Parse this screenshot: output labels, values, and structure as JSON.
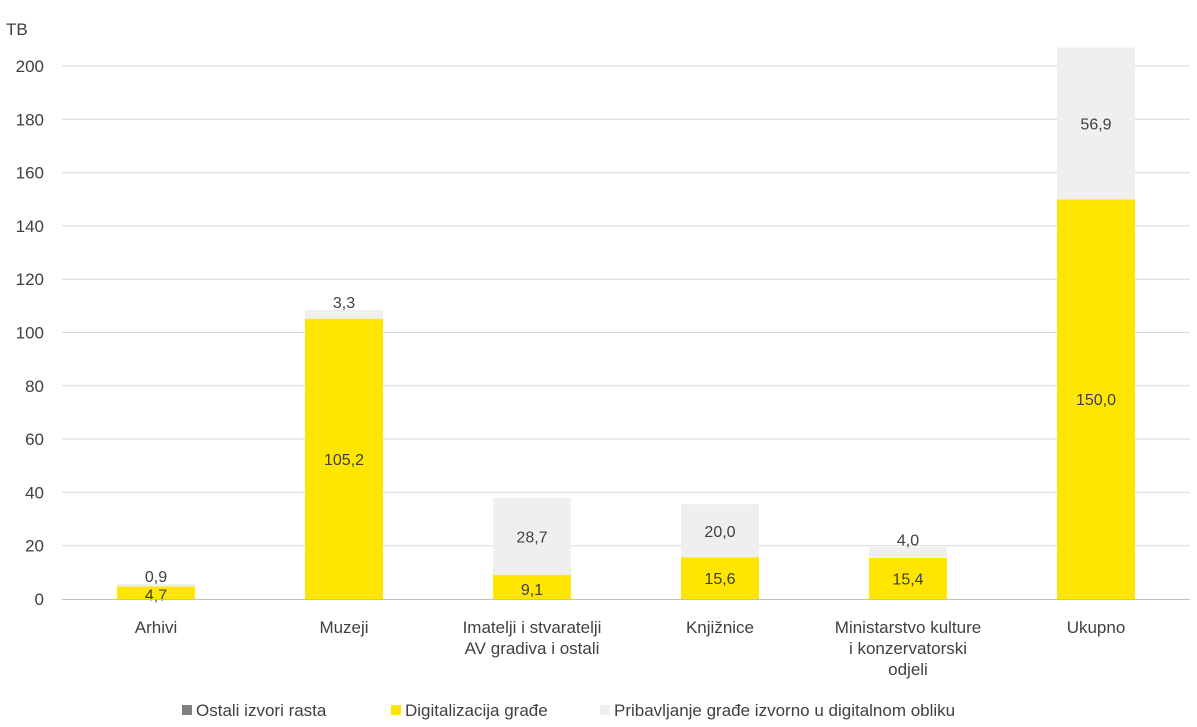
{
  "chart_data": {
    "type": "bar",
    "stacked": true,
    "ylabel": "TB",
    "ylim": [
      0,
      200
    ],
    "yticks": [
      "0",
      "20",
      "40",
      "60",
      "80",
      "100",
      "120",
      "140",
      "160",
      "180",
      "200"
    ],
    "grid": true,
    "legend_position": "bottom",
    "categories": [
      [
        "Arhivi"
      ],
      [
        "Muzeji"
      ],
      [
        "Imatelji i stvaratelji",
        "AV gradiva i ostali"
      ],
      [
        "Knjižnice"
      ],
      [
        "Ministarstvo kulture",
        "i konzervatorski",
        "odjeli"
      ],
      [
        "Ukupno"
      ]
    ],
    "series": [
      {
        "name": "Ostali izvori rasta",
        "color": "#7f7f7f",
        "values": [
          0,
          0,
          0,
          0,
          0,
          0
        ],
        "labels": [
          "",
          "",
          "",
          "",
          "",
          ""
        ]
      },
      {
        "name": "Digitalizacija građe",
        "color": "#ffe600",
        "values": [
          4.7,
          105.2,
          9.1,
          15.6,
          15.4,
          150.0
        ],
        "labels": [
          "4,7",
          "105,2",
          "9,1",
          "15,6",
          "15,4",
          "150,0"
        ]
      },
      {
        "name": "Pribavljanje građe izvorno u digitalnom obliku",
        "color": "#efefef",
        "values": [
          0.9,
          3.3,
          28.7,
          20.0,
          4.0,
          56.9
        ],
        "labels": [
          "0,9",
          "3,3",
          "28,7",
          "20,0",
          "4,0",
          "56,9"
        ]
      }
    ]
  }
}
